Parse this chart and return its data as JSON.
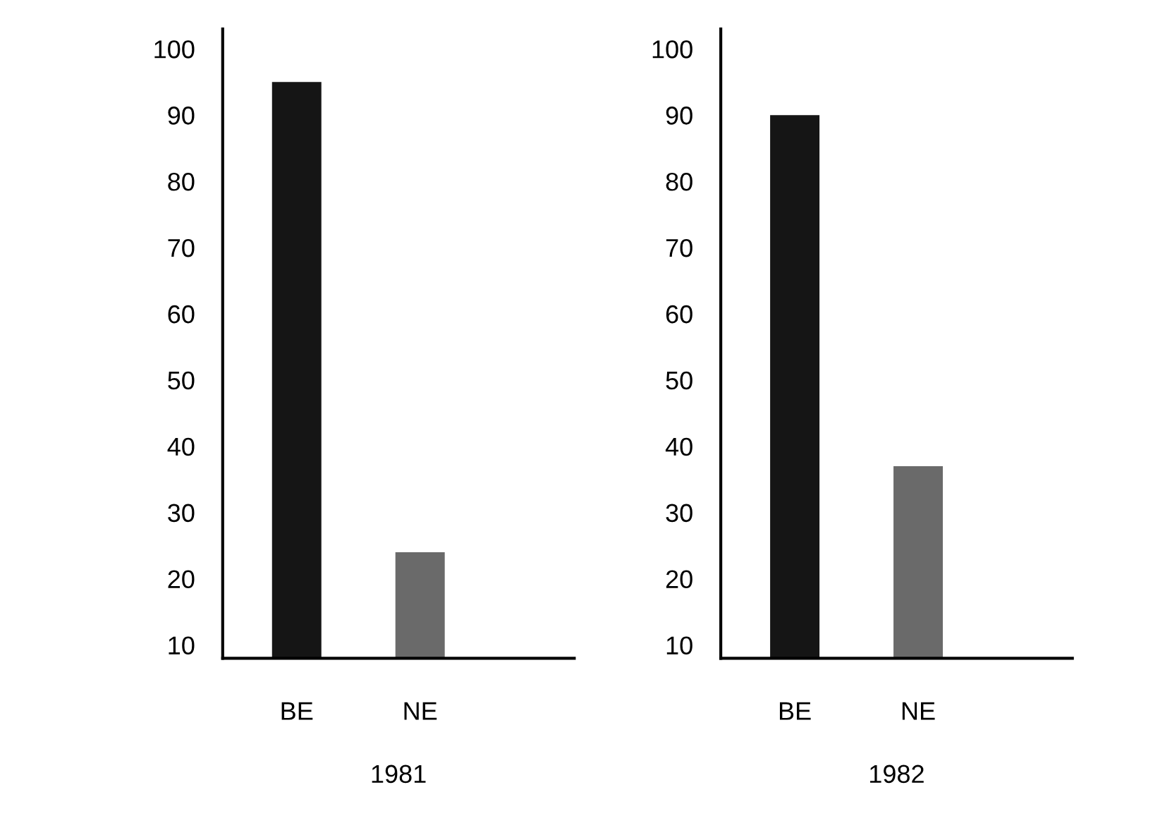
{
  "chart_data": [
    {
      "type": "bar",
      "xlabel": "1981",
      "categories": [
        "BE",
        "NE"
      ],
      "values": [
        95,
        24
      ],
      "colors": [
        "#151515",
        "#6a6a6a"
      ],
      "ylim": [
        8,
        103
      ],
      "yticks": [
        10,
        20,
        30,
        40,
        50,
        60,
        70,
        80,
        90,
        100
      ],
      "grid": false,
      "legend": false
    },
    {
      "type": "bar",
      "xlabel": "1982",
      "categories": [
        "BE",
        "NE"
      ],
      "values": [
        90,
        37
      ],
      "colors": [
        "#151515",
        "#6a6a6a"
      ],
      "ylim": [
        8,
        103
      ],
      "yticks": [
        10,
        20,
        30,
        40,
        50,
        60,
        70,
        80,
        90,
        100
      ],
      "grid": false,
      "legend": false
    }
  ]
}
